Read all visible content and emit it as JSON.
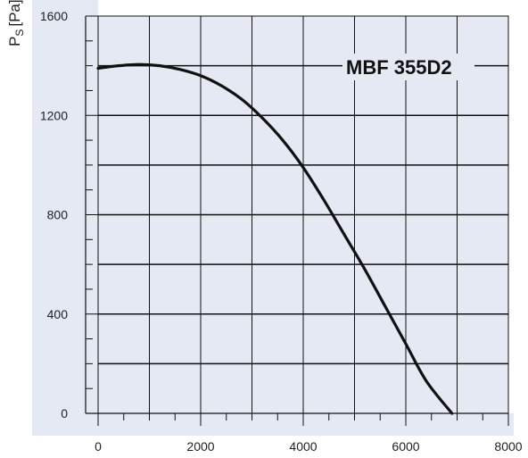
{
  "chart_data": {
    "type": "line",
    "title": "",
    "xlabel": "",
    "ylabel": "Ps [Pa]",
    "ylabel_main": "P",
    "ylabel_sub": "S",
    "ylabel_unit": "[Pa]",
    "xlim": [
      0,
      8000
    ],
    "ylim": [
      0,
      1600
    ],
    "x_ticks": [
      0,
      2000,
      4000,
      6000,
      8000
    ],
    "y_ticks": [
      0,
      400,
      800,
      1200,
      1600
    ],
    "x_tick_labels": [
      "0",
      "2000",
      "4000",
      "6000",
      "8000"
    ],
    "y_tick_labels": [
      "0",
      "400",
      "800",
      "1200",
      "1600"
    ],
    "x_gridlines": [
      1000,
      2000,
      3000,
      4000,
      5000,
      6000,
      7000
    ],
    "y_gridlines": [
      200,
      400,
      600,
      800,
      1000,
      1200,
      1400
    ],
    "grid": true,
    "series": [
      {
        "name": "MBF 355D2",
        "x": [
          0,
          400,
          800,
          1200,
          1600,
          2000,
          2400,
          2800,
          3200,
          3600,
          4000,
          4400,
          4800,
          5200,
          5600,
          6000,
          6400,
          6900
        ],
        "y": [
          1390,
          1400,
          1405,
          1400,
          1385,
          1360,
          1320,
          1265,
          1190,
          1100,
          990,
          860,
          720,
          580,
          430,
          280,
          130,
          0
        ]
      }
    ],
    "annotation": "MBF 355D2",
    "colors": {
      "plot_background": "#e4e9f4",
      "axis_band": "#e4e9f4",
      "gridline": "#111111",
      "curve": "#111111"
    }
  }
}
